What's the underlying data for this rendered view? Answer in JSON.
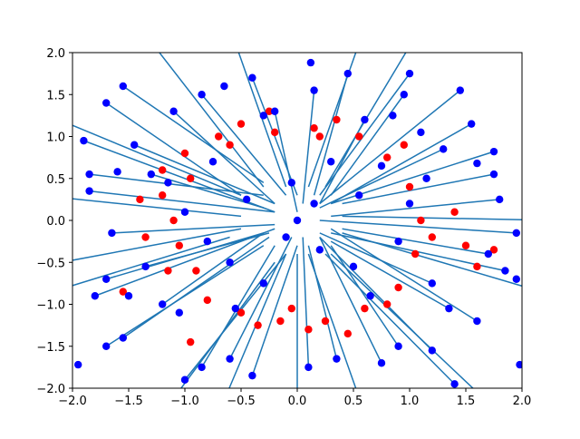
{
  "chart_data": {
    "type": "scatter",
    "title": "",
    "xlabel": "",
    "ylabel": "",
    "xlim": [
      -2.0,
      2.0
    ],
    "ylim": [
      -2.0,
      2.0
    ],
    "grid": false,
    "xticks": [
      "−2.0",
      "−1.5",
      "−1.0",
      "−0.5",
      "0.0",
      "0.5",
      "1.0",
      "1.5",
      "2.0"
    ],
    "yticks": [
      "−2.0",
      "−1.5",
      "−1.0",
      "−0.5",
      "0.0",
      "0.5",
      "1.0",
      "1.5",
      "2.0"
    ],
    "colors": {
      "segments": "#1f77b4",
      "points_blue": "#0000ff",
      "points_red": "#ff0000"
    },
    "segments": [
      [
        [
          -1.55,
          1.6
        ],
        [
          -0.3,
          0.45
        ]
      ],
      [
        [
          -1.1,
          1.3
        ],
        [
          -0.2,
          0.2
        ]
      ],
      [
        [
          -1.7,
          1.4
        ],
        [
          -0.5,
          0.3
        ]
      ],
      [
        [
          -1.9,
          0.95
        ],
        [
          -0.2,
          0.1
        ]
      ],
      [
        [
          -1.85,
          0.55
        ],
        [
          -0.3,
          0.3
        ]
      ],
      [
        [
          -1.85,
          0.35
        ],
        [
          -0.2,
          0.1
        ]
      ],
      [
        [
          -1.65,
          -0.15
        ],
        [
          -0.2,
          -0.05
        ]
      ],
      [
        [
          -1.7,
          -0.7
        ],
        [
          -0.3,
          -0.15
        ]
      ],
      [
        [
          -1.8,
          -0.9
        ],
        [
          -0.2,
          -0.1
        ]
      ],
      [
        [
          -1.7,
          -1.5
        ],
        [
          -0.3,
          -0.3
        ]
      ],
      [
        [
          -1.55,
          -1.4
        ],
        [
          -0.25,
          -0.2
        ]
      ],
      [
        [
          -1.2,
          -1.0
        ],
        [
          -0.3,
          -0.15
        ]
      ],
      [
        [
          -1.0,
          -1.9
        ],
        [
          -0.1,
          -0.4
        ]
      ],
      [
        [
          -0.85,
          -1.75
        ],
        [
          -0.2,
          -0.3
        ]
      ],
      [
        [
          -0.6,
          -1.65
        ],
        [
          -0.05,
          -0.2
        ]
      ],
      [
        [
          -0.4,
          -1.85
        ],
        [
          0.0,
          -0.3
        ]
      ],
      [
        [
          0.1,
          -1.75
        ],
        [
          0.05,
          -0.2
        ]
      ],
      [
        [
          0.35,
          -1.65
        ],
        [
          0.1,
          -0.3
        ]
      ],
      [
        [
          0.75,
          -1.7
        ],
        [
          0.2,
          -0.2
        ]
      ],
      [
        [
          0.9,
          -1.5
        ],
        [
          0.3,
          -0.3
        ]
      ],
      [
        [
          1.2,
          -1.55
        ],
        [
          0.2,
          -0.2
        ]
      ],
      [
        [
          1.4,
          -1.95
        ],
        [
          0.25,
          -0.4
        ]
      ],
      [
        [
          1.35,
          -1.05
        ],
        [
          0.3,
          -0.25
        ]
      ],
      [
        [
          1.6,
          -1.2
        ],
        [
          0.3,
          -0.1
        ]
      ],
      [
        [
          1.85,
          -0.6
        ],
        [
          0.3,
          -0.15
        ]
      ],
      [
        [
          1.7,
          -0.4
        ],
        [
          0.4,
          -0.1
        ]
      ],
      [
        [
          1.95,
          -0.15
        ],
        [
          0.2,
          0.0
        ]
      ],
      [
        [
          1.8,
          0.25
        ],
        [
          0.3,
          0.05
        ]
      ],
      [
        [
          1.75,
          0.55
        ],
        [
          0.4,
          0.2
        ]
      ],
      [
        [
          1.75,
          0.82
        ],
        [
          0.3,
          0.2
        ]
      ],
      [
        [
          1.55,
          1.15
        ],
        [
          0.3,
          0.2
        ]
      ],
      [
        [
          1.45,
          1.55
        ],
        [
          0.2,
          0.2
        ]
      ],
      [
        [
          1.0,
          1.75
        ],
        [
          0.2,
          0.3
        ]
      ],
      [
        [
          0.95,
          1.5
        ],
        [
          0.3,
          0.3
        ]
      ],
      [
        [
          0.45,
          1.75
        ],
        [
          0.15,
          0.3
        ]
      ],
      [
        [
          0.15,
          1.55
        ],
        [
          0.05,
          0.2
        ]
      ],
      [
        [
          -0.4,
          1.7
        ],
        [
          0.0,
          0.3
        ]
      ],
      [
        [
          -0.85,
          1.5
        ],
        [
          -0.1,
          0.3
        ]
      ],
      [
        [
          -0.2,
          1.3
        ],
        [
          0.0,
          0.1
        ]
      ],
      [
        [
          0.6,
          1.2
        ],
        [
          0.2,
          0.2
        ]
      ],
      [
        [
          -1.45,
          0.9
        ],
        [
          -0.2,
          0.2
        ]
      ],
      [
        [
          -1.3,
          0.55
        ],
        [
          -0.3,
          0.15
        ]
      ],
      [
        [
          1.3,
          0.85
        ],
        [
          0.2,
          0.15
        ]
      ],
      [
        [
          1.2,
          -0.75
        ],
        [
          0.2,
          -0.15
        ]
      ],
      [
        [
          -1.35,
          -0.55
        ],
        [
          -0.25,
          -0.15
        ]
      ],
      [
        [
          -2.3,
          1.3
        ],
        [
          -0.5,
          0.3
        ]
      ],
      [
        [
          -2.3,
          0.3
        ],
        [
          -0.5,
          0.05
        ]
      ],
      [
        [
          -2.3,
          -0.55
        ],
        [
          -0.5,
          -0.1
        ]
      ],
      [
        [
          -2.3,
          -0.9
        ],
        [
          -0.6,
          -0.2
        ]
      ],
      [
        [
          -1.4,
          2.3
        ],
        [
          -0.3,
          0.4
        ]
      ],
      [
        [
          -0.6,
          2.3
        ],
        [
          -0.1,
          0.4
        ]
      ],
      [
        [
          0.6,
          2.3
        ],
        [
          0.1,
          0.4
        ]
      ],
      [
        [
          1.1,
          2.3
        ],
        [
          0.25,
          0.4
        ]
      ],
      [
        [
          2.3,
          0.0
        ],
        [
          0.4,
          0.05
        ]
      ],
      [
        [
          2.3,
          -0.9
        ],
        [
          0.4,
          -0.15
        ]
      ],
      [
        [
          -1.2,
          -2.3
        ],
        [
          -0.2,
          -0.5
        ]
      ],
      [
        [
          -0.7,
          -2.3
        ],
        [
          -0.1,
          -0.4
        ]
      ],
      [
        [
          0.0,
          -2.3
        ],
        [
          0.0,
          -0.4
        ]
      ],
      [
        [
          0.6,
          -2.3
        ],
        [
          0.1,
          -0.4
        ]
      ],
      [
        [
          1.8,
          -2.3
        ],
        [
          0.3,
          -0.4
        ]
      ]
    ],
    "points_blue": [
      [
        -1.55,
        1.6
      ],
      [
        -1.1,
        1.3
      ],
      [
        -1.7,
        1.4
      ],
      [
        -1.9,
        0.95
      ],
      [
        -1.85,
        0.55
      ],
      [
        -1.85,
        0.35
      ],
      [
        -1.65,
        -0.15
      ],
      [
        -1.7,
        -0.7
      ],
      [
        -1.8,
        -0.9
      ],
      [
        -1.7,
        -1.5
      ],
      [
        -1.55,
        -1.4
      ],
      [
        -1.2,
        -1.0
      ],
      [
        -1.0,
        -1.9
      ],
      [
        -0.85,
        -1.75
      ],
      [
        -0.6,
        -1.65
      ],
      [
        -0.4,
        -1.85
      ],
      [
        0.1,
        -1.75
      ],
      [
        0.35,
        -1.65
      ],
      [
        0.75,
        -1.7
      ],
      [
        0.9,
        -1.5
      ],
      [
        1.2,
        -1.55
      ],
      [
        1.4,
        -1.95
      ],
      [
        1.35,
        -1.05
      ],
      [
        1.6,
        -1.2
      ],
      [
        1.85,
        -0.6
      ],
      [
        1.7,
        -0.4
      ],
      [
        1.95,
        -0.15
      ],
      [
        1.8,
        0.25
      ],
      [
        1.75,
        0.55
      ],
      [
        1.75,
        0.82
      ],
      [
        1.55,
        1.15
      ],
      [
        1.45,
        1.55
      ],
      [
        1.0,
        1.75
      ],
      [
        0.95,
        1.5
      ],
      [
        0.45,
        1.75
      ],
      [
        0.15,
        1.55
      ],
      [
        -0.4,
        1.7
      ],
      [
        -0.85,
        1.5
      ],
      [
        -0.2,
        1.3
      ],
      [
        0.6,
        1.2
      ],
      [
        -1.45,
        0.9
      ],
      [
        -1.3,
        0.55
      ],
      [
        1.3,
        0.85
      ],
      [
        1.2,
        -0.75
      ],
      [
        -1.35,
        -0.55
      ],
      [
        0.12,
        1.88
      ],
      [
        -0.3,
        1.25
      ],
      [
        -0.05,
        0.45
      ],
      [
        0.15,
        0.2
      ],
      [
        -0.1,
        -0.2
      ],
      [
        0.2,
        -0.35
      ],
      [
        0.55,
        0.3
      ],
      [
        -0.45,
        0.25
      ],
      [
        -0.6,
        -0.5
      ],
      [
        0.5,
        -0.55
      ],
      [
        1.0,
        0.2
      ],
      [
        -1.0,
        0.1
      ],
      [
        0.9,
        -0.25
      ],
      [
        -0.8,
        -0.25
      ],
      [
        0.3,
        0.7
      ],
      [
        -0.3,
        -0.75
      ],
      [
        0.75,
        0.65
      ],
      [
        -0.75,
        0.7
      ],
      [
        0.65,
        -0.9
      ],
      [
        -0.55,
        -1.05
      ],
      [
        1.1,
        1.05
      ],
      [
        -1.05,
        -1.1
      ],
      [
        1.15,
        0.5
      ],
      [
        -1.15,
        0.45
      ],
      [
        0.0,
        0.0
      ],
      [
        -1.95,
        -1.72
      ],
      [
        1.98,
        -1.72
      ],
      [
        1.6,
        0.68
      ],
      [
        -1.6,
        0.58
      ],
      [
        1.95,
        -0.7
      ],
      [
        -1.5,
        -0.9
      ],
      [
        0.85,
        1.25
      ],
      [
        -0.65,
        1.6
      ]
    ],
    "points_red": [
      [
        -1.0,
        0.8
      ],
      [
        -1.2,
        0.3
      ],
      [
        -1.1,
        0.0
      ],
      [
        -0.9,
        -0.6
      ],
      [
        -0.7,
        1.0
      ],
      [
        -0.5,
        1.15
      ],
      [
        -0.2,
        1.05
      ],
      [
        0.15,
        1.1
      ],
      [
        0.55,
        1.0
      ],
      [
        0.8,
        0.75
      ],
      [
        1.0,
        0.4
      ],
      [
        1.1,
        0.0
      ],
      [
        1.05,
        -0.4
      ],
      [
        0.9,
        -0.8
      ],
      [
        0.6,
        -1.05
      ],
      [
        0.25,
        -1.2
      ],
      [
        -0.15,
        -1.2
      ],
      [
        -0.5,
        -1.1
      ],
      [
        -0.8,
        -0.95
      ],
      [
        -1.05,
        -0.3
      ],
      [
        -1.15,
        -0.6
      ],
      [
        -0.95,
        0.5
      ],
      [
        0.35,
        1.2
      ],
      [
        -0.35,
        -1.25
      ],
      [
        0.8,
        -1.0
      ],
      [
        1.2,
        -0.2
      ],
      [
        -1.2,
        0.6
      ],
      [
        0.95,
        0.9
      ],
      [
        -0.6,
        0.9
      ],
      [
        0.1,
        -1.3
      ],
      [
        1.5,
        -0.3
      ],
      [
        1.4,
        0.1
      ],
      [
        -1.4,
        0.25
      ],
      [
        -1.35,
        -0.2
      ],
      [
        0.45,
        -1.35
      ],
      [
        -0.25,
        1.3
      ],
      [
        1.75,
        -0.35
      ],
      [
        -1.55,
        -0.85
      ],
      [
        1.6,
        -0.55
      ],
      [
        -0.95,
        -1.45
      ],
      [
        0.2,
        1.0
      ],
      [
        -0.05,
        -1.05
      ]
    ]
  }
}
